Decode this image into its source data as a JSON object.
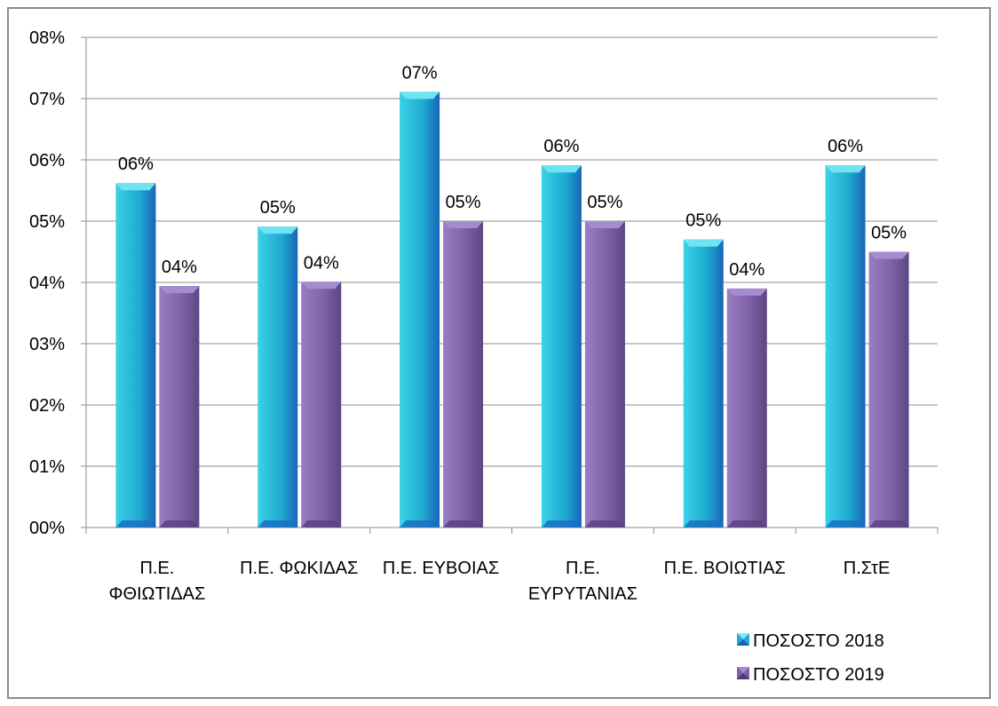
{
  "chart_data": {
    "type": "bar",
    "categories": [
      [
        "Π.Ε.",
        "ΦΘΙΩΤΙΔΑΣ"
      ],
      [
        "Π.Ε. ΦΩΚΙΔΑΣ"
      ],
      [
        "Π.Ε. ΕΥΒΟΙΑΣ"
      ],
      [
        "Π.Ε.",
        "ΕΥΡΥΤΑΝΙΑΣ"
      ],
      [
        "Π.Ε. ΒΟΙΩΤΙΑΣ"
      ],
      [
        "Π.ΣτΕ"
      ]
    ],
    "series": [
      {
        "name": "ΠΟΣΟΣΤΟ 2018",
        "values": [
          0.0562,
          0.0491,
          0.0711,
          0.0591,
          0.047,
          0.0591
        ],
        "labels": [
          "06%",
          "05%",
          "07%",
          "06%",
          "05%",
          "06%"
        ],
        "color": "#23b6d3"
      },
      {
        "name": "ΠΟΣΟΣΤΟ 2019",
        "values": [
          0.0394,
          0.0401,
          0.05,
          0.05,
          0.039,
          0.045
        ],
        "labels": [
          "04%",
          "04%",
          "05%",
          "05%",
          "04%",
          "05%"
        ],
        "color": "#8468ad"
      }
    ],
    "yticks": [
      "00%",
      "01%",
      "02%",
      "03%",
      "04%",
      "05%",
      "06%",
      "07%",
      "08%"
    ],
    "ylim": [
      0,
      0.08
    ],
    "grid": true,
    "legend": "bottom-right"
  }
}
